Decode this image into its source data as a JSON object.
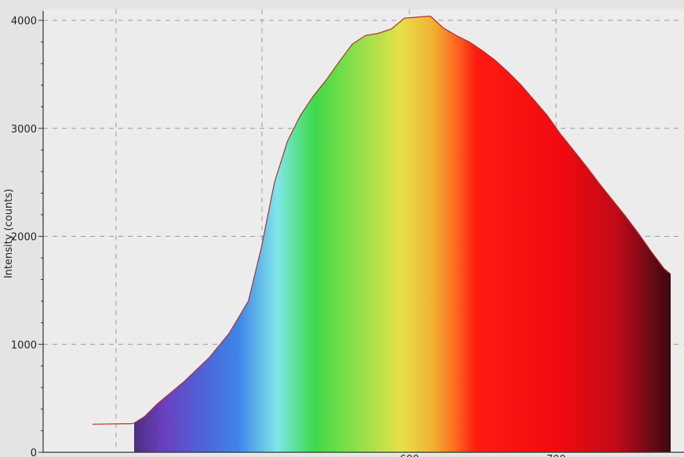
{
  "chart_data": {
    "type": "area",
    "title": "",
    "xlabel": "",
    "ylabel": "Intensity (counts)",
    "y_ticks": [
      "0",
      "1000",
      "2000",
      "3000",
      "4000"
    ],
    "x_ticks": [
      "600",
      "700"
    ],
    "ylim": [
      0,
      4100
    ],
    "xlim": [
      350,
      795
    ],
    "grid": true,
    "fill": "visible-spectrum rainbow (violet → blue → cyan → green → yellow → orange → red → dark red)",
    "colors": {
      "background": "#e4e4e4",
      "plot_background": "#ececec",
      "grid": "#9a9a9a",
      "line": "#b03030",
      "axis": "#333333"
    },
    "series": [
      {
        "x": [
          350,
          380,
          382,
          390,
          400,
          420,
          440,
          455,
          470,
          480,
          490,
          500,
          510,
          520,
          530,
          540,
          550,
          560,
          570,
          580,
          590,
          600,
          610,
          620,
          630,
          640,
          650,
          660,
          670,
          680,
          690,
          700,
          710,
          720,
          730,
          740,
          750,
          760,
          770,
          780,
          790,
          795
        ],
        "y": [
          260,
          265,
          270,
          330,
          450,
          650,
          880,
          1100,
          1400,
          1900,
          2500,
          2880,
          3120,
          3300,
          3450,
          3620,
          3780,
          3860,
          3880,
          3920,
          4020,
          4030,
          4040,
          3930,
          3860,
          3800,
          3720,
          3630,
          3520,
          3400,
          3260,
          3120,
          2950,
          2800,
          2650,
          2490,
          2340,
          2190,
          2030,
          1860,
          1700,
          1650
        ]
      }
    ]
  }
}
